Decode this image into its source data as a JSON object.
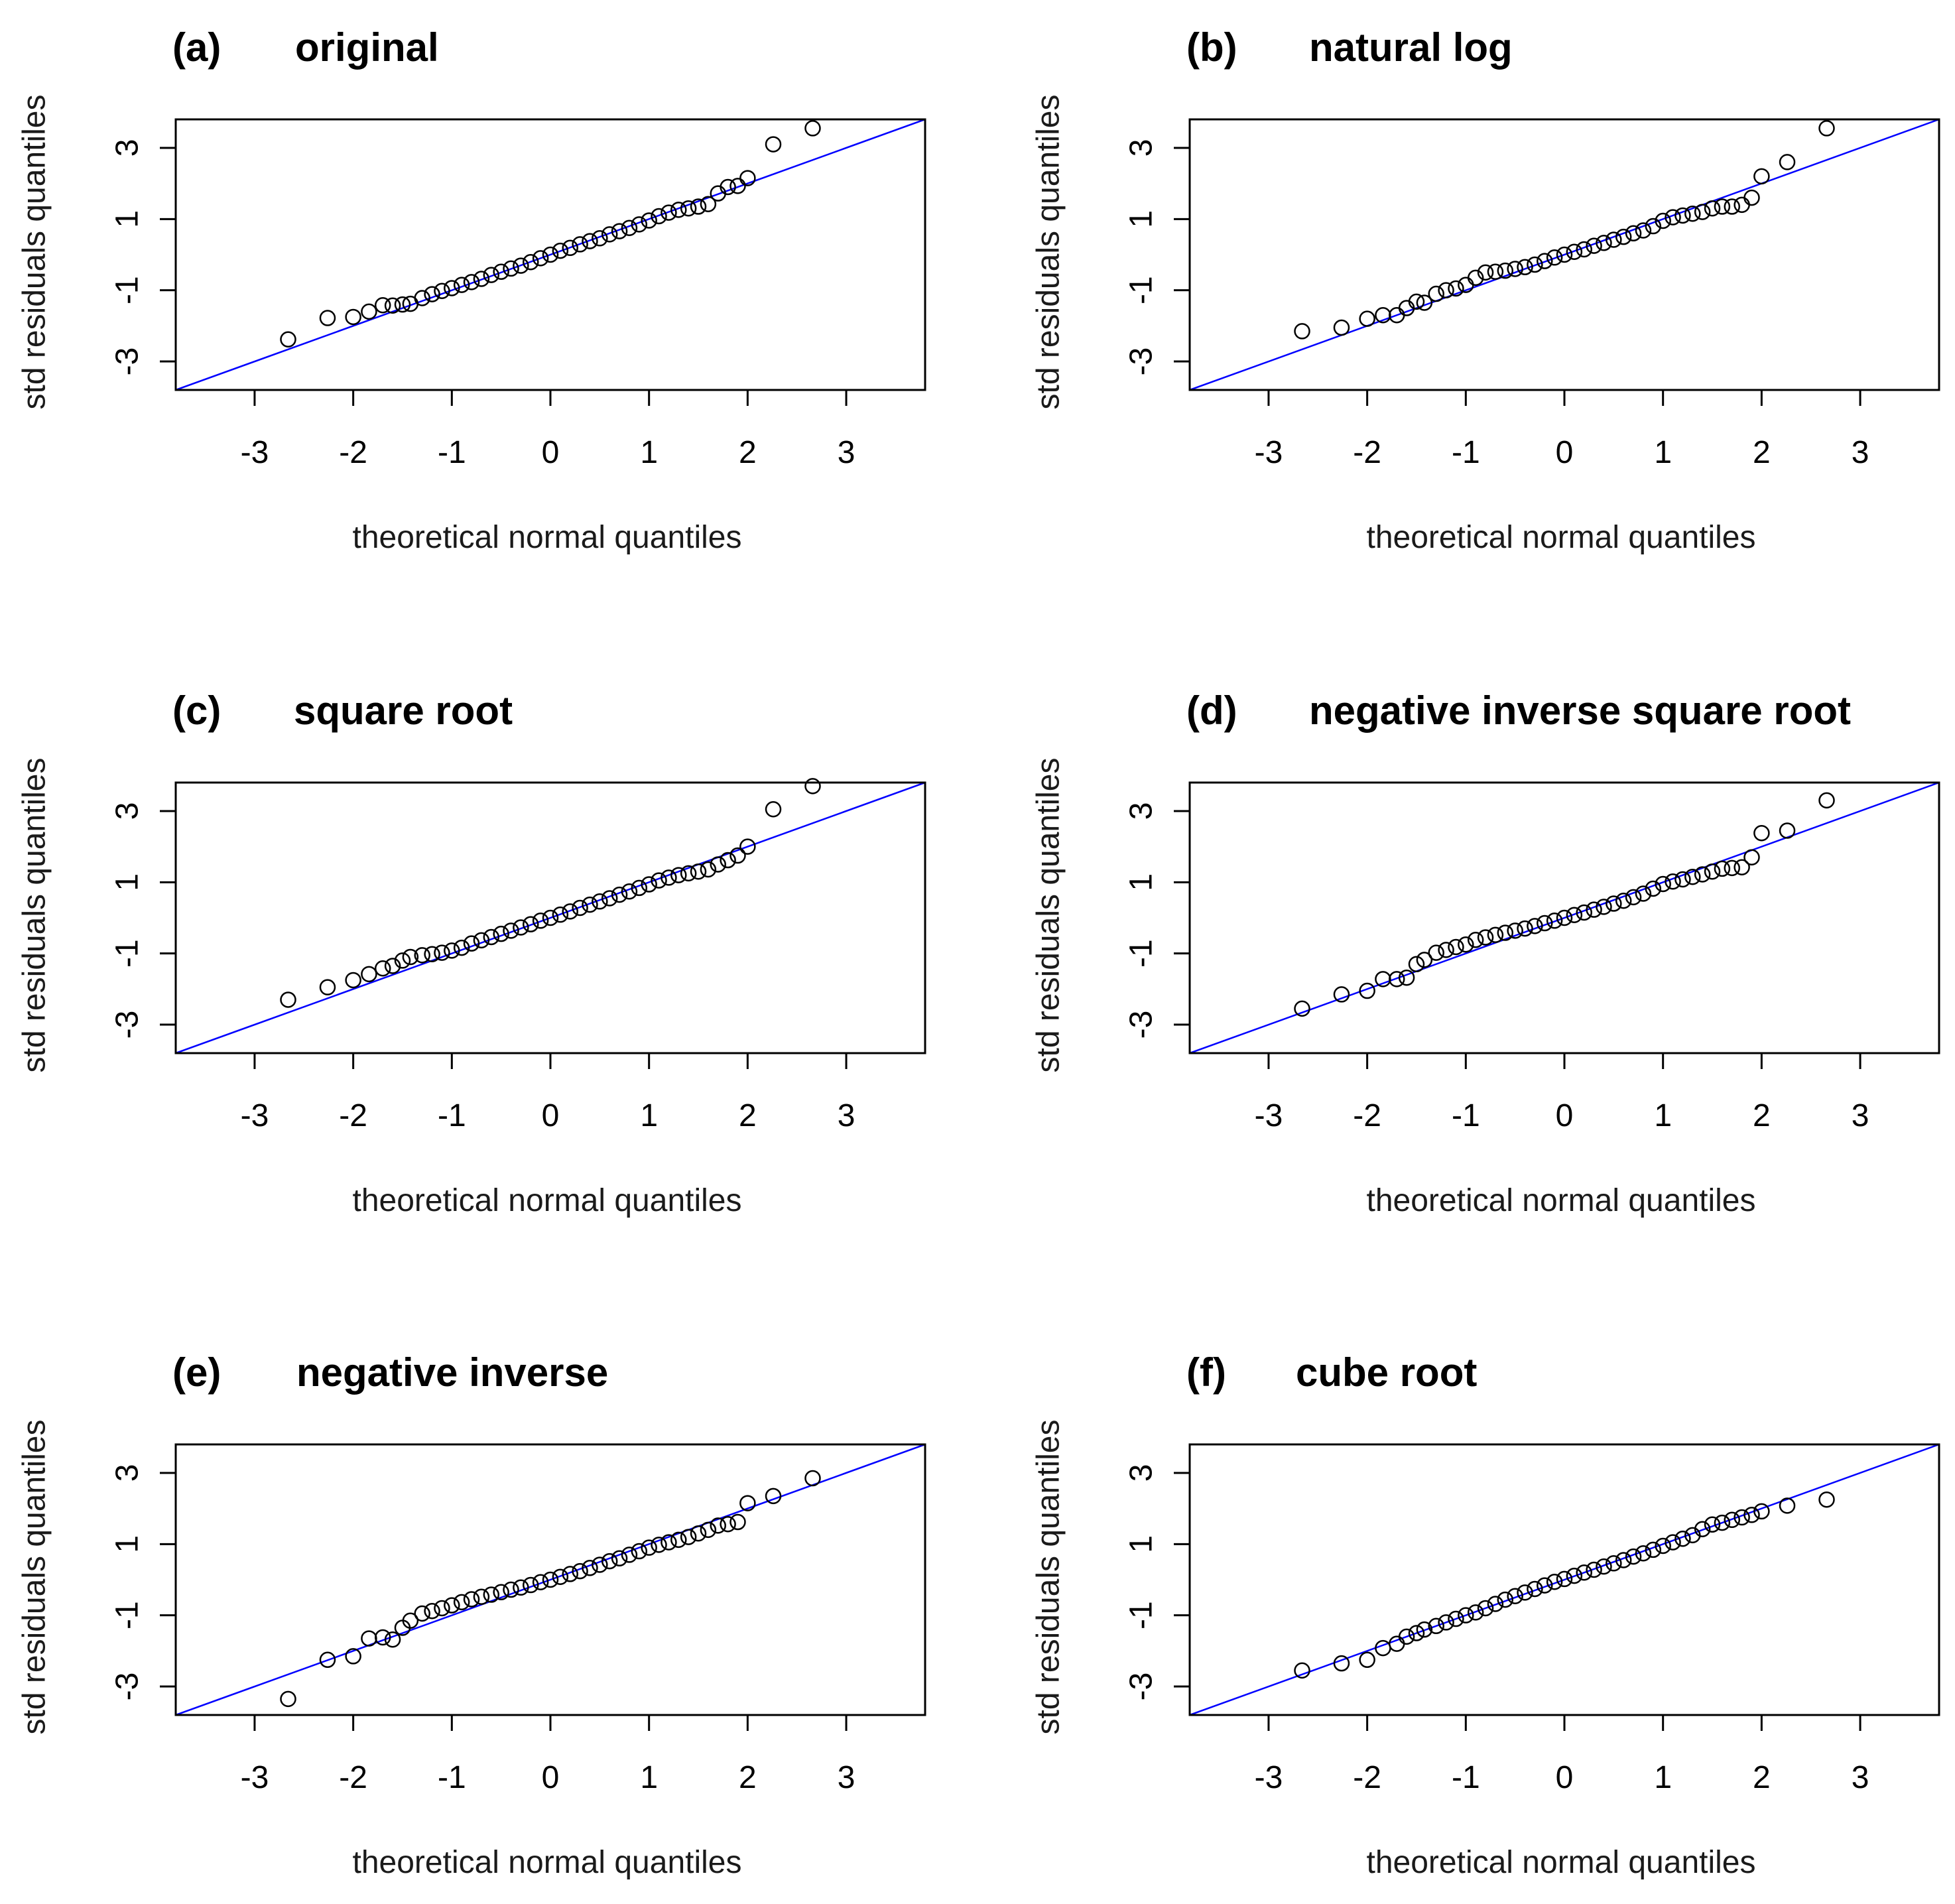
{
  "chart_data": [
    {
      "type": "scatter",
      "label": "(a)",
      "title": "original",
      "xlabel": "theoretical normal quantiles",
      "ylabel": "std residuals quantiles",
      "xlim": [
        -3.8,
        3.8
      ],
      "ylim": [
        -3.8,
        3.8
      ],
      "x_ticks": [
        -3,
        -2,
        -1,
        0,
        1,
        2,
        3
      ],
      "y_ticks": [
        -3,
        -1,
        1,
        3
      ],
      "reference_line": {
        "intercept": 0,
        "slope": 1,
        "color": "#0000ff"
      },
      "points": [
        [
          -2.66,
          -2.38
        ],
        [
          -2.26,
          -1.78
        ],
        [
          -2.0,
          -1.75
        ],
        [
          -1.84,
          -1.6
        ],
        [
          -1.7,
          -1.42
        ],
        [
          -1.6,
          -1.43
        ],
        [
          -1.5,
          -1.4
        ],
        [
          -1.42,
          -1.38
        ],
        [
          -1.3,
          -1.22
        ],
        [
          -1.2,
          -1.11
        ],
        [
          -1.1,
          -1.02
        ],
        [
          -1.0,
          -0.94
        ],
        [
          -0.9,
          -0.85
        ],
        [
          -0.8,
          -0.77
        ],
        [
          -0.7,
          -0.68
        ],
        [
          -0.6,
          -0.57
        ],
        [
          -0.5,
          -0.48
        ],
        [
          -0.4,
          -0.39
        ],
        [
          -0.3,
          -0.31
        ],
        [
          -0.2,
          -0.21
        ],
        [
          -0.1,
          -0.1
        ],
        [
          0.0,
          0.0
        ],
        [
          0.1,
          0.11
        ],
        [
          0.2,
          0.19
        ],
        [
          0.3,
          0.29
        ],
        [
          0.4,
          0.38
        ],
        [
          0.5,
          0.46
        ],
        [
          0.6,
          0.57
        ],
        [
          0.7,
          0.66
        ],
        [
          0.8,
          0.75
        ],
        [
          0.9,
          0.85
        ],
        [
          1.0,
          0.96
        ],
        [
          1.1,
          1.08
        ],
        [
          1.2,
          1.18
        ],
        [
          1.3,
          1.26
        ],
        [
          1.4,
          1.3
        ],
        [
          1.5,
          1.35
        ],
        [
          1.6,
          1.42
        ],
        [
          1.7,
          1.72
        ],
        [
          1.8,
          1.9
        ],
        [
          1.9,
          1.93
        ],
        [
          2.0,
          2.15
        ],
        [
          2.26,
          3.1
        ],
        [
          2.66,
          3.55
        ]
      ]
    },
    {
      "type": "scatter",
      "label": "(b)",
      "title": "natural log",
      "xlabel": "theoretical normal quantiles",
      "ylabel": "std residuals quantiles",
      "xlim": [
        -3.8,
        3.8
      ],
      "ylim": [
        -3.8,
        3.8
      ],
      "x_ticks": [
        -3,
        -2,
        -1,
        0,
        1,
        2,
        3
      ],
      "y_ticks": [
        -3,
        -1,
        1,
        3
      ],
      "reference_line": {
        "intercept": 0,
        "slope": 1,
        "color": "#0000ff"
      },
      "points": [
        [
          -2.66,
          -2.15
        ],
        [
          -2.26,
          -2.05
        ],
        [
          -2.0,
          -1.8
        ],
        [
          -1.84,
          -1.7
        ],
        [
          -1.7,
          -1.7
        ],
        [
          -1.6,
          -1.5
        ],
        [
          -1.5,
          -1.32
        ],
        [
          -1.42,
          -1.35
        ],
        [
          -1.3,
          -1.1
        ],
        [
          -1.2,
          -1.0
        ],
        [
          -1.1,
          -0.95
        ],
        [
          -1.0,
          -0.85
        ],
        [
          -0.9,
          -0.65
        ],
        [
          -0.8,
          -0.5
        ],
        [
          -0.7,
          -0.48
        ],
        [
          -0.6,
          -0.45
        ],
        [
          -0.5,
          -0.4
        ],
        [
          -0.4,
          -0.35
        ],
        [
          -0.3,
          -0.28
        ],
        [
          -0.2,
          -0.18
        ],
        [
          -0.1,
          -0.08
        ],
        [
          0.0,
          0.0
        ],
        [
          0.1,
          0.08
        ],
        [
          0.2,
          0.15
        ],
        [
          0.3,
          0.25
        ],
        [
          0.4,
          0.33
        ],
        [
          0.5,
          0.42
        ],
        [
          0.6,
          0.5
        ],
        [
          0.7,
          0.6
        ],
        [
          0.8,
          0.68
        ],
        [
          0.9,
          0.8
        ],
        [
          1.0,
          0.95
        ],
        [
          1.1,
          1.05
        ],
        [
          1.2,
          1.1
        ],
        [
          1.3,
          1.15
        ],
        [
          1.4,
          1.2
        ],
        [
          1.5,
          1.3
        ],
        [
          1.6,
          1.35
        ],
        [
          1.7,
          1.35
        ],
        [
          1.8,
          1.4
        ],
        [
          1.9,
          1.6
        ],
        [
          2.0,
          2.2
        ],
        [
          2.26,
          2.6
        ],
        [
          2.66,
          3.55
        ]
      ]
    },
    {
      "type": "scatter",
      "label": "(c)",
      "title": "square root",
      "xlabel": "theoretical normal quantiles",
      "ylabel": "std residuals quantiles",
      "xlim": [
        -3.8,
        3.8
      ],
      "ylim": [
        -3.8,
        3.8
      ],
      "x_ticks": [
        -3,
        -2,
        -1,
        0,
        1,
        2,
        3
      ],
      "y_ticks": [
        -3,
        -1,
        1,
        3
      ],
      "reference_line": {
        "intercept": 0,
        "slope": 1,
        "color": "#0000ff"
      },
      "points": [
        [
          -2.66,
          -2.3
        ],
        [
          -2.26,
          -1.95
        ],
        [
          -2.0,
          -1.75
        ],
        [
          -1.84,
          -1.58
        ],
        [
          -1.7,
          -1.42
        ],
        [
          -1.6,
          -1.35
        ],
        [
          -1.5,
          -1.2
        ],
        [
          -1.42,
          -1.1
        ],
        [
          -1.3,
          -1.05
        ],
        [
          -1.2,
          -1.02
        ],
        [
          -1.1,
          -0.98
        ],
        [
          -1.0,
          -0.92
        ],
        [
          -0.9,
          -0.84
        ],
        [
          -0.8,
          -0.72
        ],
        [
          -0.7,
          -0.63
        ],
        [
          -0.6,
          -0.54
        ],
        [
          -0.5,
          -0.45
        ],
        [
          -0.4,
          -0.36
        ],
        [
          -0.3,
          -0.27
        ],
        [
          -0.2,
          -0.18
        ],
        [
          -0.1,
          -0.08
        ],
        [
          0.0,
          0.0
        ],
        [
          0.1,
          0.09
        ],
        [
          0.2,
          0.18
        ],
        [
          0.3,
          0.28
        ],
        [
          0.4,
          0.37
        ],
        [
          0.5,
          0.46
        ],
        [
          0.6,
          0.55
        ],
        [
          0.7,
          0.65
        ],
        [
          0.8,
          0.74
        ],
        [
          0.9,
          0.84
        ],
        [
          1.0,
          0.94
        ],
        [
          1.1,
          1.05
        ],
        [
          1.2,
          1.13
        ],
        [
          1.3,
          1.2
        ],
        [
          1.4,
          1.25
        ],
        [
          1.5,
          1.3
        ],
        [
          1.6,
          1.36
        ],
        [
          1.7,
          1.5
        ],
        [
          1.8,
          1.62
        ],
        [
          1.9,
          1.75
        ],
        [
          2.0,
          2.0
        ],
        [
          2.26,
          3.05
        ],
        [
          2.66,
          3.7
        ]
      ]
    },
    {
      "type": "scatter",
      "label": "(d)",
      "title": "negative inverse square root",
      "xlabel": "theoretical normal quantiles",
      "ylabel": "std residuals quantiles",
      "xlim": [
        -3.8,
        3.8
      ],
      "ylim": [
        -3.8,
        3.8
      ],
      "x_ticks": [
        -3,
        -2,
        -1,
        0,
        1,
        2,
        3
      ],
      "y_ticks": [
        -3,
        -1,
        1,
        3
      ],
      "reference_line": {
        "intercept": 0,
        "slope": 1,
        "color": "#0000ff"
      },
      "points": [
        [
          -2.66,
          -2.55
        ],
        [
          -2.26,
          -2.15
        ],
        [
          -2.0,
          -2.05
        ],
        [
          -1.84,
          -1.72
        ],
        [
          -1.7,
          -1.72
        ],
        [
          -1.6,
          -1.68
        ],
        [
          -1.5,
          -1.3
        ],
        [
          -1.42,
          -1.18
        ],
        [
          -1.3,
          -0.98
        ],
        [
          -1.2,
          -0.9
        ],
        [
          -1.1,
          -0.82
        ],
        [
          -1.0,
          -0.75
        ],
        [
          -0.9,
          -0.62
        ],
        [
          -0.8,
          -0.55
        ],
        [
          -0.7,
          -0.48
        ],
        [
          -0.6,
          -0.42
        ],
        [
          -0.5,
          -0.36
        ],
        [
          -0.4,
          -0.3
        ],
        [
          -0.3,
          -0.23
        ],
        [
          -0.2,
          -0.15
        ],
        [
          -0.1,
          -0.08
        ],
        [
          0.0,
          0.0
        ],
        [
          0.1,
          0.08
        ],
        [
          0.2,
          0.15
        ],
        [
          0.3,
          0.23
        ],
        [
          0.4,
          0.31
        ],
        [
          0.5,
          0.4
        ],
        [
          0.6,
          0.48
        ],
        [
          0.7,
          0.58
        ],
        [
          0.8,
          0.68
        ],
        [
          0.9,
          0.82
        ],
        [
          1.0,
          0.95
        ],
        [
          1.1,
          1.02
        ],
        [
          1.2,
          1.08
        ],
        [
          1.3,
          1.15
        ],
        [
          1.4,
          1.22
        ],
        [
          1.5,
          1.3
        ],
        [
          1.6,
          1.38
        ],
        [
          1.7,
          1.4
        ],
        [
          1.8,
          1.42
        ],
        [
          1.9,
          1.7
        ],
        [
          2.0,
          2.38
        ],
        [
          2.26,
          2.45
        ],
        [
          2.66,
          3.3
        ]
      ]
    },
    {
      "type": "scatter",
      "label": "(e)",
      "title": "negative inverse",
      "xlabel": "theoretical normal quantiles",
      "ylabel": "std residuals quantiles",
      "xlim": [
        -3.8,
        3.8
      ],
      "ylim": [
        -3.8,
        3.8
      ],
      "x_ticks": [
        -3,
        -2,
        -1,
        0,
        1,
        2,
        3
      ],
      "y_ticks": [
        -3,
        -1,
        1,
        3
      ],
      "reference_line": {
        "intercept": 0,
        "slope": 1,
        "color": "#0000ff"
      },
      "points": [
        [
          -2.66,
          -3.35
        ],
        [
          -2.26,
          -2.25
        ],
        [
          -2.0,
          -2.15
        ],
        [
          -1.84,
          -1.65
        ],
        [
          -1.7,
          -1.62
        ],
        [
          -1.6,
          -1.68
        ],
        [
          -1.5,
          -1.35
        ],
        [
          -1.42,
          -1.15
        ],
        [
          -1.3,
          -0.95
        ],
        [
          -1.2,
          -0.88
        ],
        [
          -1.1,
          -0.8
        ],
        [
          -1.0,
          -0.72
        ],
        [
          -0.9,
          -0.63
        ],
        [
          -0.8,
          -0.55
        ],
        [
          -0.7,
          -0.48
        ],
        [
          -0.6,
          -0.42
        ],
        [
          -0.5,
          -0.35
        ],
        [
          -0.4,
          -0.28
        ],
        [
          -0.3,
          -0.22
        ],
        [
          -0.2,
          -0.15
        ],
        [
          -0.1,
          -0.07
        ],
        [
          0.0,
          0.0
        ],
        [
          0.1,
          0.08
        ],
        [
          0.2,
          0.16
        ],
        [
          0.3,
          0.24
        ],
        [
          0.4,
          0.33
        ],
        [
          0.5,
          0.42
        ],
        [
          0.6,
          0.52
        ],
        [
          0.7,
          0.6
        ],
        [
          0.8,
          0.7
        ],
        [
          0.9,
          0.8
        ],
        [
          1.0,
          0.9
        ],
        [
          1.1,
          0.98
        ],
        [
          1.2,
          1.05
        ],
        [
          1.3,
          1.12
        ],
        [
          1.4,
          1.2
        ],
        [
          1.5,
          1.3
        ],
        [
          1.6,
          1.4
        ],
        [
          1.7,
          1.52
        ],
        [
          1.8,
          1.56
        ],
        [
          1.9,
          1.62
        ],
        [
          2.0,
          2.15
        ],
        [
          2.26,
          2.35
        ],
        [
          2.66,
          2.85
        ]
      ]
    },
    {
      "type": "scatter",
      "label": "(f)",
      "title": "cube root",
      "xlabel": "theoretical normal quantiles",
      "ylabel": "std residuals quantiles",
      "xlim": [
        -3.8,
        3.8
      ],
      "ylim": [
        -3.8,
        3.8
      ],
      "x_ticks": [
        -3,
        -2,
        -1,
        0,
        1,
        2,
        3
      ],
      "y_ticks": [
        -3,
        -1,
        1,
        3
      ],
      "reference_line": {
        "intercept": 0,
        "slope": 1,
        "color": "#0000ff"
      },
      "points": [
        [
          -2.66,
          -2.55
        ],
        [
          -2.26,
          -2.35
        ],
        [
          -2.0,
          -2.25
        ],
        [
          -1.84,
          -1.92
        ],
        [
          -1.7,
          -1.8
        ],
        [
          -1.6,
          -1.6
        ],
        [
          -1.5,
          -1.5
        ],
        [
          -1.42,
          -1.4
        ],
        [
          -1.3,
          -1.3
        ],
        [
          -1.2,
          -1.2
        ],
        [
          -1.1,
          -1.1
        ],
        [
          -1.0,
          -1.0
        ],
        [
          -0.9,
          -0.92
        ],
        [
          -0.8,
          -0.8
        ],
        [
          -0.7,
          -0.68
        ],
        [
          -0.6,
          -0.56
        ],
        [
          -0.5,
          -0.46
        ],
        [
          -0.4,
          -0.36
        ],
        [
          -0.3,
          -0.26
        ],
        [
          -0.2,
          -0.16
        ],
        [
          -0.1,
          -0.06
        ],
        [
          0.0,
          0.02
        ],
        [
          0.1,
          0.11
        ],
        [
          0.2,
          0.2
        ],
        [
          0.3,
          0.28
        ],
        [
          0.4,
          0.37
        ],
        [
          0.5,
          0.46
        ],
        [
          0.6,
          0.55
        ],
        [
          0.7,
          0.65
        ],
        [
          0.8,
          0.74
        ],
        [
          0.9,
          0.84
        ],
        [
          1.0,
          0.95
        ],
        [
          1.1,
          1.05
        ],
        [
          1.2,
          1.15
        ],
        [
          1.3,
          1.25
        ],
        [
          1.4,
          1.42
        ],
        [
          1.5,
          1.55
        ],
        [
          1.6,
          1.6
        ],
        [
          1.7,
          1.68
        ],
        [
          1.8,
          1.75
        ],
        [
          1.9,
          1.82
        ],
        [
          2.0,
          1.92
        ],
        [
          2.26,
          2.08
        ],
        [
          2.66,
          2.25
        ]
      ]
    }
  ]
}
